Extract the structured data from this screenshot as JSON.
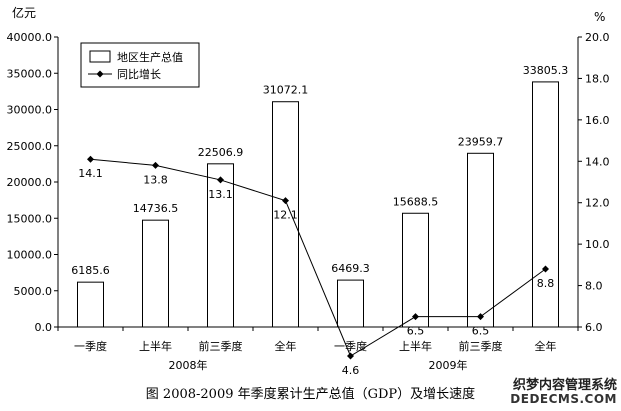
{
  "chart_data": {
    "type": "bar",
    "left_unit": "亿元",
    "right_unit": "%",
    "categories": [
      "一季度",
      "上半年",
      "前三季度",
      "全年",
      "一季度",
      "上半年",
      "前三季度",
      "全年"
    ],
    "groups": [
      {
        "label": "2008年",
        "from": 0,
        "to": 3
      },
      {
        "label": "2009年",
        "from": 4,
        "to": 7
      }
    ],
    "left_ticks": [
      "0.0",
      "5000.0",
      "10000.0",
      "15000.0",
      "20000.0",
      "25000.0",
      "30000.0",
      "35000.0",
      "40000.0"
    ],
    "right_ticks": [
      "6.0",
      "8.0",
      "10.0",
      "12.0",
      "14.0",
      "16.0",
      "18.0",
      "20.0"
    ],
    "ylim_left": [
      0,
      40000
    ],
    "ylim_right": [
      6,
      20
    ],
    "series": [
      {
        "name": "地区生产总值",
        "kind": "bar",
        "axis": "left",
        "values": [
          6185.6,
          14736.5,
          22506.9,
          31072.1,
          6469.3,
          15688.5,
          23959.7,
          33805.3
        ],
        "labels": [
          "6185.6",
          "14736.5",
          "22506.9",
          "31072.1",
          "6469.3",
          "15688.5",
          "23959.7",
          "33805.3"
        ]
      },
      {
        "name": "同比增长",
        "kind": "line",
        "axis": "right",
        "values": [
          14.1,
          13.8,
          13.1,
          12.1,
          4.6,
          6.5,
          6.5,
          8.8
        ],
        "labels": [
          "14.1",
          "13.8",
          "13.1",
          "12.1",
          "4.6",
          "6.5",
          "6.5",
          "8.8"
        ]
      }
    ],
    "legend_position": "top-left"
  },
  "caption": "图 2008-2009 年季度累计生产总值（GDP）及增长速度",
  "watermark": {
    "line1": "织梦内容管理系统",
    "line2": "DEDECMS.COM"
  }
}
